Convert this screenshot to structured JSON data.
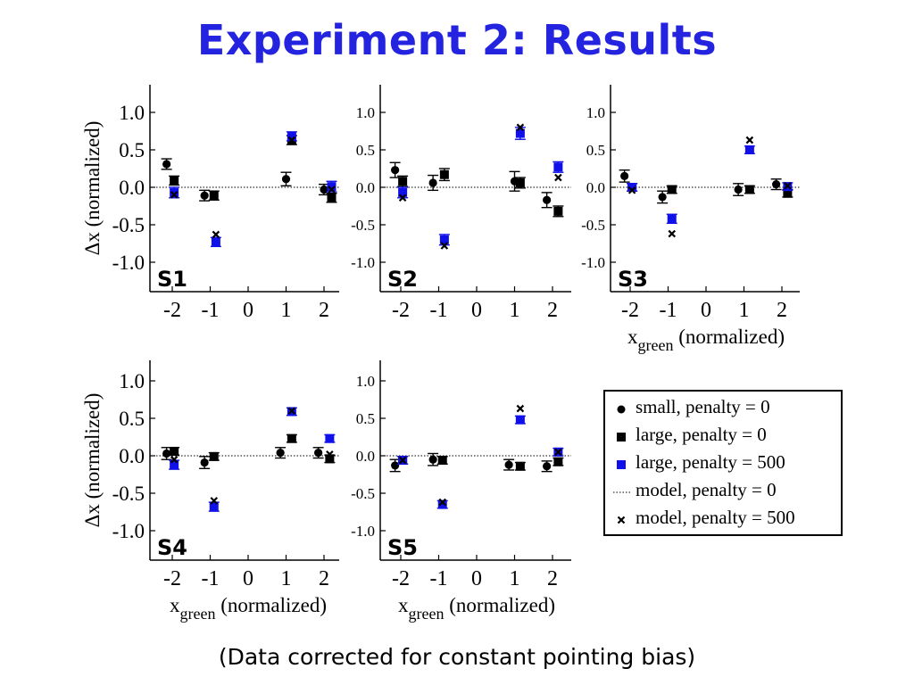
{
  "title": "Experiment 2: Results",
  "footnote": "(Data corrected for constant pointing bias)",
  "colors": {
    "title": "#2424e0",
    "blue_marker": "#1010e8",
    "black": "#000000"
  },
  "legend": [
    {
      "symbol": "circle",
      "color": "#000000",
      "label": "small, penalty = 0"
    },
    {
      "symbol": "square",
      "color": "#000000",
      "label": "large, penalty = 0"
    },
    {
      "symbol": "square",
      "color": "#1010e8",
      "label": "large, penalty = 500"
    },
    {
      "symbol": "dotted-line",
      "color": "#000000",
      "label": "model, penalty = 0"
    },
    {
      "symbol": "cross",
      "color": "#000000",
      "label": "model, penalty = 500"
    }
  ],
  "chart_data": [
    {
      "type": "scatter",
      "panel": "S1",
      "ylabel": "Δx (normalized)",
      "xlabel": "",
      "xlim": [
        -2.5,
        2.5
      ],
      "ylim": [
        -1.4,
        1.4
      ],
      "grid": false,
      "x_ticks": [
        "-2",
        "-1",
        "0",
        "1",
        "2"
      ],
      "y_ticks": [
        "1.0",
        "0.5",
        "0.0",
        "-0.5",
        "-1.0"
      ],
      "model_penalty_0": 0,
      "series": [
        {
          "name": "small, penalty = 0",
          "x": [
            -2.15,
            -1.15,
            1.0,
            2.0
          ],
          "y": [
            0.31,
            -0.11,
            0.11,
            -0.03
          ],
          "err": [
            0.07,
            0.07,
            0.09,
            0.07
          ]
        },
        {
          "name": "large, penalty = 0",
          "x": [
            -1.95,
            -0.9,
            1.15,
            2.2
          ],
          "y": [
            0.09,
            -0.11,
            0.63,
            -0.14
          ],
          "err": [
            0.06,
            0.06,
            0.06,
            0.06
          ]
        },
        {
          "name": "large, penalty = 500",
          "x": [
            -1.95,
            -0.85,
            1.15,
            2.2
          ],
          "y": [
            -0.07,
            -0.73,
            0.68,
            0.01
          ],
          "err": [
            0.07,
            0.06,
            0.06,
            0.07
          ]
        },
        {
          "name": "model, penalty = 500",
          "x": [
            -1.95,
            -0.85,
            1.15,
            2.2
          ],
          "y": [
            -0.1,
            -0.63,
            0.63,
            -0.03
          ]
        }
      ]
    },
    {
      "type": "scatter",
      "panel": "S2",
      "ylabel": "",
      "xlabel": "",
      "xlim": [
        -2.5,
        2.5
      ],
      "ylim": [
        -1.4,
        1.4
      ],
      "grid": false,
      "x_ticks": [
        "-2",
        "-1",
        "0",
        "1",
        "2"
      ],
      "y_ticks": [
        "1.0",
        "0.5",
        "0.0",
        "-0.5",
        "-1.0"
      ],
      "model_penalty_0": 0,
      "series": [
        {
          "name": "small, penalty = 0",
          "x": [
            -2.15,
            -1.15,
            1.0,
            1.85
          ],
          "y": [
            0.23,
            0.06,
            0.08,
            -0.17
          ],
          "err": [
            0.1,
            0.1,
            0.13,
            0.1
          ]
        },
        {
          "name": "large, penalty = 0",
          "x": [
            -1.95,
            -0.85,
            1.15,
            2.15
          ],
          "y": [
            0.08,
            0.17,
            0.06,
            -0.32
          ],
          "err": [
            0.07,
            0.08,
            0.07,
            0.07
          ]
        },
        {
          "name": "large, penalty = 500",
          "x": [
            -1.95,
            -0.85,
            1.15,
            2.15
          ],
          "y": [
            -0.07,
            -0.7,
            0.72,
            0.27
          ],
          "err": [
            0.07,
            0.07,
            0.08,
            0.07
          ]
        },
        {
          "name": "model, penalty = 500",
          "x": [
            -1.95,
            -0.85,
            1.15,
            2.15
          ],
          "y": [
            -0.14,
            -0.78,
            0.8,
            0.13
          ]
        }
      ]
    },
    {
      "type": "scatter",
      "panel": "S3",
      "ylabel": "",
      "xlabel": "x_green (normalized)",
      "xlim": [
        -2.5,
        2.5
      ],
      "ylim": [
        -1.4,
        1.4
      ],
      "grid": false,
      "x_ticks": [
        "-2",
        "-1",
        "0",
        "1",
        "2"
      ],
      "y_ticks": [
        "1.0",
        "0.5",
        "0.0",
        "-0.5",
        "-1.0"
      ],
      "model_penalty_0": 0,
      "series": [
        {
          "name": "small, penalty = 0",
          "x": [
            -2.15,
            -1.15,
            0.85,
            1.85
          ],
          "y": [
            0.15,
            -0.13,
            -0.03,
            0.04
          ],
          "err": [
            0.08,
            0.08,
            0.08,
            0.07
          ]
        },
        {
          "name": "large, penalty = 0",
          "x": [
            -1.95,
            -0.9,
            1.15,
            2.15
          ],
          "y": [
            0.0,
            -0.03,
            -0.03,
            -0.08
          ],
          "err": [
            0.05,
            0.05,
            0.05,
            0.05
          ]
        },
        {
          "name": "large, penalty = 500",
          "x": [
            -1.95,
            -0.9,
            1.15,
            2.15
          ],
          "y": [
            0.0,
            -0.42,
            0.5,
            0.01
          ],
          "err": [
            0.05,
            0.06,
            0.05,
            0.05
          ]
        },
        {
          "name": "model, penalty = 500",
          "x": [
            -1.95,
            -0.9,
            1.15,
            2.15
          ],
          "y": [
            -0.04,
            -0.62,
            0.63,
            0.02
          ]
        }
      ]
    },
    {
      "type": "scatter",
      "panel": "S4",
      "ylabel": "Δx (normalized)",
      "xlabel": "x_green (normalized)",
      "xlim": [
        -2.5,
        2.5
      ],
      "ylim": [
        -1.4,
        1.4
      ],
      "grid": false,
      "x_ticks": [
        "-2",
        "-1",
        "0",
        "1",
        "2"
      ],
      "y_ticks": [
        "1.0",
        "0.5",
        "0.0",
        "-0.5",
        "-1.0"
      ],
      "model_penalty_0": 0,
      "series": [
        {
          "name": "small, penalty = 0",
          "x": [
            -2.15,
            -1.15,
            0.85,
            1.85
          ],
          "y": [
            0.03,
            -0.09,
            0.04,
            0.04
          ],
          "err": [
            0.08,
            0.08,
            0.07,
            0.07
          ]
        },
        {
          "name": "large, penalty = 0",
          "x": [
            -1.95,
            -0.9,
            1.15,
            2.15
          ],
          "y": [
            0.06,
            -0.01,
            0.23,
            -0.04
          ],
          "err": [
            0.05,
            0.05,
            0.05,
            0.05
          ]
        },
        {
          "name": "large, penalty = 500",
          "x": [
            -1.95,
            -0.9,
            1.15,
            2.15
          ],
          "y": [
            -0.12,
            -0.68,
            0.59,
            0.23
          ],
          "err": [
            0.06,
            0.06,
            0.05,
            0.05
          ]
        },
        {
          "name": "model, penalty = 500",
          "x": [
            -1.95,
            -0.9,
            1.15,
            2.15
          ],
          "y": [
            -0.05,
            -0.6,
            0.6,
            0.02
          ]
        }
      ]
    },
    {
      "type": "scatter",
      "panel": "S5",
      "ylabel": "",
      "xlabel": "x_green (normalized)",
      "xlim": [
        -2.5,
        2.5
      ],
      "ylim": [
        -1.4,
        1.4
      ],
      "grid": false,
      "x_ticks": [
        "-2",
        "-1",
        "0",
        "1",
        "2"
      ],
      "y_ticks": [
        "1.0",
        "0.5",
        "0.0",
        "-0.5",
        "-1.0"
      ],
      "model_penalty_0": 0,
      "series": [
        {
          "name": "small, penalty = 0",
          "x": [
            -2.15,
            -1.15,
            0.85,
            1.85
          ],
          "y": [
            -0.13,
            -0.05,
            -0.12,
            -0.14
          ],
          "err": [
            0.08,
            0.08,
            0.07,
            0.07
          ]
        },
        {
          "name": "large, penalty = 0",
          "x": [
            -1.95,
            -0.9,
            1.15,
            2.15
          ],
          "y": [
            -0.06,
            -0.06,
            -0.14,
            -0.08
          ],
          "err": [
            0.05,
            0.05,
            0.05,
            0.05
          ]
        },
        {
          "name": "large, penalty = 500",
          "x": [
            -1.95,
            -0.9,
            1.15,
            2.15
          ],
          "y": [
            -0.06,
            -0.65,
            0.48,
            0.05
          ],
          "err": [
            0.05,
            0.05,
            0.05,
            0.05
          ]
        },
        {
          "name": "model, penalty = 500",
          "x": [
            -1.95,
            -0.9,
            1.15,
            2.15
          ],
          "y": [
            -0.06,
            -0.62,
            0.63,
            0.05
          ]
        }
      ]
    }
  ]
}
